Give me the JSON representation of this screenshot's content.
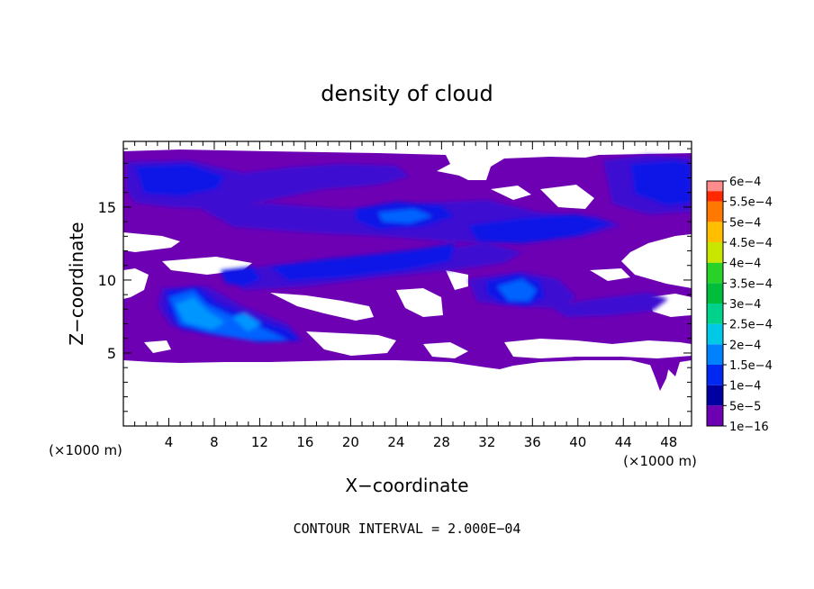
{
  "chart_data": {
    "type": "heatmap",
    "title": "density of cloud",
    "xlabel": "X−coordinate",
    "ylabel": "Z−coordinate",
    "x_unit": "(×1000 m)",
    "z_unit": "(×1000 m)",
    "footer": "CONTOUR INTERVAL = 2.000E−04",
    "xlim": [
      0,
      50
    ],
    "ylim": [
      0,
      19.5
    ],
    "x_ticks": [
      4,
      8,
      12,
      16,
      20,
      24,
      28,
      32,
      36,
      40,
      44,
      48
    ],
    "x_tick_labels": [
      "4",
      "8",
      "12",
      "16",
      "20",
      "24",
      "28",
      "32",
      "36",
      "40",
      "44",
      "48"
    ],
    "y_ticks": [
      5,
      10,
      15
    ],
    "y_tick_labels": [
      "5",
      "10",
      "15"
    ],
    "colorbar": {
      "levels": [
        {
          "label": "1e−16",
          "color": "#6e00b4"
        },
        {
          "label": "5e−5",
          "color": "#0000a0"
        },
        {
          "label": "1e−4",
          "color": "#0028f0"
        },
        {
          "label": "1.5e−4",
          "color": "#0082ff"
        },
        {
          "label": "2e−4",
          "color": "#00c8e6"
        },
        {
          "label": "2.5e−4",
          "color": "#00d28c"
        },
        {
          "label": "3e−4",
          "color": "#00be3c"
        },
        {
          "label": "3.5e−4",
          "color": "#28d228"
        },
        {
          "label": "4e−4",
          "color": "#c8e600"
        },
        {
          "label": "4.5e−4",
          "color": "#ffbe00"
        },
        {
          "label": "5e−4",
          "color": "#ff7800"
        },
        {
          "label": "5.5e−4",
          "color": "#ff2800"
        },
        {
          "label": "6e−4",
          "color": "#ff8c8c"
        }
      ]
    },
    "colors": {
      "background_band": "#6e00b4",
      "level1": "#3c0ad2",
      "level2": "#0a14e6",
      "level3": "#0064ff",
      "level4": "#0096ff"
    }
  }
}
